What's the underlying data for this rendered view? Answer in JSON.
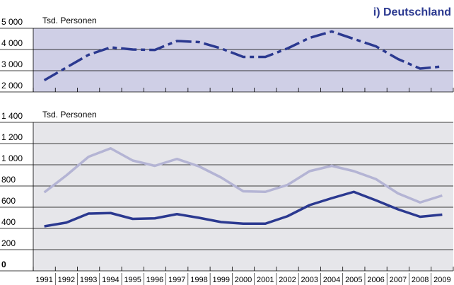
{
  "chart_data": [
    {
      "type": "line",
      "title": "i) Deutschland",
      "y_label": "Tsd. Personen",
      "background": "#cfcfe6",
      "line_style": "dashed",
      "x": [
        "1991",
        "1992",
        "1993",
        "1994",
        "1995",
        "1996",
        "1997",
        "1998",
        "1999",
        "2000",
        "2001",
        "2002",
        "2003",
        "2004",
        "2005",
        "2006",
        "2007",
        "2008",
        "2009"
      ],
      "series": [
        {
          "color": "#2b3990",
          "values": [
            2550,
            3150,
            3750,
            4100,
            4000,
            3980,
            4400,
            4350,
            4050,
            3650,
            3650,
            4050,
            4550,
            4850,
            4500,
            4150,
            3550,
            3100,
            3200
          ]
        }
      ],
      "ylim": [
        2000,
        5000
      ],
      "yticks": [
        {
          "value": 2000,
          "label": "2 000"
        },
        {
          "value": 3000,
          "label": "3 000"
        },
        {
          "value": 4000,
          "label": "4 000"
        },
        {
          "value": 5000,
          "label": "5 000"
        }
      ]
    },
    {
      "type": "line",
      "y_label": "Tsd. Personen",
      "background": "#e6e6ea",
      "line_style": "solid",
      "x": [
        "1991",
        "1992",
        "1993",
        "1994",
        "1995",
        "1996",
        "1997",
        "1998",
        "1999",
        "2000",
        "2001",
        "2002",
        "2003",
        "2004",
        "2005",
        "2006",
        "2007",
        "2008",
        "2009"
      ],
      "series": [
        {
          "color": "#b4b4d4",
          "values": [
            740,
            900,
            1075,
            1155,
            1040,
            990,
            1055,
            985,
            880,
            750,
            745,
            810,
            940,
            990,
            940,
            865,
            730,
            645,
            710
          ]
        },
        {
          "color": "#2b3990",
          "values": [
            420,
            455,
            540,
            545,
            490,
            495,
            535,
            500,
            460,
            445,
            445,
            515,
            620,
            685,
            745,
            665,
            580,
            510,
            530
          ]
        }
      ],
      "ylim": [
        0,
        1400
      ],
      "yticks": [
        0,
        200,
        400,
        600,
        800,
        {
          "value": 1000,
          "label": "1 000"
        },
        {
          "value": 1200,
          "label": "1 200"
        },
        {
          "value": 1400,
          "label": "1 400"
        }
      ]
    }
  ]
}
